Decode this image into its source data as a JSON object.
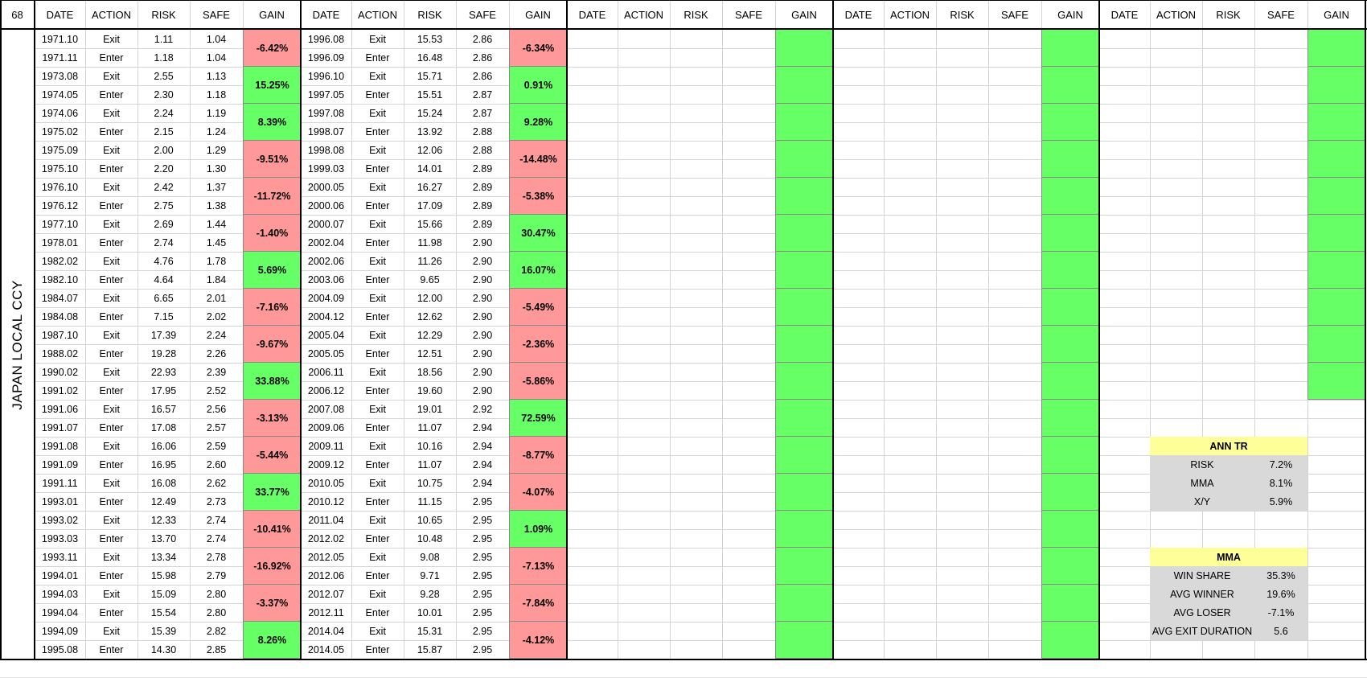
{
  "sheet_id": "68",
  "side_label": "JAPAN LOCAL CCY",
  "headers": [
    "DATE",
    "ACTION",
    "RISK",
    "SAFE",
    "GAIN"
  ],
  "colors": {
    "loss": "#ff9999",
    "win": "#66ff66",
    "stat_title": "#ffff99",
    "stat_body": "#d9d9d9"
  },
  "blocks": [
    {
      "rows": [
        {
          "date": "1971.10",
          "action": "Exit",
          "risk": "1.11",
          "safe": "1.04"
        },
        {
          "date": "1971.11",
          "action": "Enter",
          "risk": "1.18",
          "safe": "1.04"
        },
        {
          "date": "1973.08",
          "action": "Exit",
          "risk": "2.55",
          "safe": "1.13"
        },
        {
          "date": "1974.05",
          "action": "Enter",
          "risk": "2.30",
          "safe": "1.18"
        },
        {
          "date": "1974.06",
          "action": "Exit",
          "risk": "2.24",
          "safe": "1.19"
        },
        {
          "date": "1975.02",
          "action": "Enter",
          "risk": "2.15",
          "safe": "1.24"
        },
        {
          "date": "1975.09",
          "action": "Exit",
          "risk": "2.00",
          "safe": "1.29"
        },
        {
          "date": "1975.10",
          "action": "Enter",
          "risk": "2.20",
          "safe": "1.30"
        },
        {
          "date": "1976.10",
          "action": "Exit",
          "risk": "2.42",
          "safe": "1.37"
        },
        {
          "date": "1976.12",
          "action": "Enter",
          "risk": "2.75",
          "safe": "1.38"
        },
        {
          "date": "1977.10",
          "action": "Exit",
          "risk": "2.69",
          "safe": "1.44"
        },
        {
          "date": "1978.01",
          "action": "Enter",
          "risk": "2.74",
          "safe": "1.45"
        },
        {
          "date": "1982.02",
          "action": "Exit",
          "risk": "4.76",
          "safe": "1.78"
        },
        {
          "date": "1982.10",
          "action": "Enter",
          "risk": "4.64",
          "safe": "1.84"
        },
        {
          "date": "1984.07",
          "action": "Exit",
          "risk": "6.65",
          "safe": "2.01"
        },
        {
          "date": "1984.08",
          "action": "Enter",
          "risk": "7.15",
          "safe": "2.02"
        },
        {
          "date": "1987.10",
          "action": "Exit",
          "risk": "17.39",
          "safe": "2.24"
        },
        {
          "date": "1988.02",
          "action": "Enter",
          "risk": "19.28",
          "safe": "2.26"
        },
        {
          "date": "1990.02",
          "action": "Exit",
          "risk": "22.93",
          "safe": "2.39"
        },
        {
          "date": "1991.02",
          "action": "Enter",
          "risk": "17.95",
          "safe": "2.52"
        },
        {
          "date": "1991.06",
          "action": "Exit",
          "risk": "16.57",
          "safe": "2.56"
        },
        {
          "date": "1991.07",
          "action": "Enter",
          "risk": "17.08",
          "safe": "2.57"
        },
        {
          "date": "1991.08",
          "action": "Exit",
          "risk": "16.06",
          "safe": "2.59"
        },
        {
          "date": "1991.09",
          "action": "Enter",
          "risk": "16.95",
          "safe": "2.60"
        },
        {
          "date": "1991.11",
          "action": "Exit",
          "risk": "16.08",
          "safe": "2.62"
        },
        {
          "date": "1993.01",
          "action": "Enter",
          "risk": "12.49",
          "safe": "2.73"
        },
        {
          "date": "1993.02",
          "action": "Exit",
          "risk": "12.33",
          "safe": "2.74"
        },
        {
          "date": "1993.03",
          "action": "Enter",
          "risk": "13.70",
          "safe": "2.74"
        },
        {
          "date": "1993.11",
          "action": "Exit",
          "risk": "13.34",
          "safe": "2.78"
        },
        {
          "date": "1994.01",
          "action": "Enter",
          "risk": "15.98",
          "safe": "2.79"
        },
        {
          "date": "1994.03",
          "action": "Exit",
          "risk": "15.09",
          "safe": "2.80"
        },
        {
          "date": "1994.04",
          "action": "Enter",
          "risk": "15.54",
          "safe": "2.80"
        },
        {
          "date": "1994.09",
          "action": "Exit",
          "risk": "15.39",
          "safe": "2.82"
        },
        {
          "date": "1995.08",
          "action": "Enter",
          "risk": "14.30",
          "safe": "2.85"
        }
      ],
      "gains": [
        {
          "text": "-6.42%",
          "win": false
        },
        {
          "text": "15.25%",
          "win": true
        },
        {
          "text": "8.39%",
          "win": true
        },
        {
          "text": "-9.51%",
          "win": false
        },
        {
          "text": "-11.72%",
          "win": false
        },
        {
          "text": "-1.40%",
          "win": false
        },
        {
          "text": "5.69%",
          "win": true
        },
        {
          "text": "-7.16%",
          "win": false
        },
        {
          "text": "-9.67%",
          "win": false
        },
        {
          "text": "33.88%",
          "win": true
        },
        {
          "text": "-3.13%",
          "win": false
        },
        {
          "text": "-5.44%",
          "win": false
        },
        {
          "text": "33.77%",
          "win": true
        },
        {
          "text": "-10.41%",
          "win": false
        },
        {
          "text": "-16.92%",
          "win": false
        },
        {
          "text": "-3.37%",
          "win": false
        },
        {
          "text": "8.26%",
          "win": true
        }
      ]
    },
    {
      "rows": [
        {
          "date": "1996.08",
          "action": "Exit",
          "risk": "15.53",
          "safe": "2.86"
        },
        {
          "date": "1996.09",
          "action": "Enter",
          "risk": "16.48",
          "safe": "2.86"
        },
        {
          "date": "1996.10",
          "action": "Exit",
          "risk": "15.71",
          "safe": "2.86"
        },
        {
          "date": "1997.05",
          "action": "Enter",
          "risk": "15.51",
          "safe": "2.87"
        },
        {
          "date": "1997.08",
          "action": "Exit",
          "risk": "15.24",
          "safe": "2.87"
        },
        {
          "date": "1998.07",
          "action": "Enter",
          "risk": "13.92",
          "safe": "2.88"
        },
        {
          "date": "1998.08",
          "action": "Exit",
          "risk": "12.06",
          "safe": "2.88"
        },
        {
          "date": "1999.03",
          "action": "Enter",
          "risk": "14.01",
          "safe": "2.89"
        },
        {
          "date": "2000.05",
          "action": "Exit",
          "risk": "16.27",
          "safe": "2.89"
        },
        {
          "date": "2000.06",
          "action": "Enter",
          "risk": "17.09",
          "safe": "2.89"
        },
        {
          "date": "2000.07",
          "action": "Exit",
          "risk": "15.66",
          "safe": "2.89"
        },
        {
          "date": "2002.04",
          "action": "Enter",
          "risk": "11.98",
          "safe": "2.90"
        },
        {
          "date": "2002.06",
          "action": "Exit",
          "risk": "11.26",
          "safe": "2.90"
        },
        {
          "date": "2003.06",
          "action": "Enter",
          "risk": "9.65",
          "safe": "2.90"
        },
        {
          "date": "2004.09",
          "action": "Exit",
          "risk": "12.00",
          "safe": "2.90"
        },
        {
          "date": "2004.12",
          "action": "Enter",
          "risk": "12.62",
          "safe": "2.90"
        },
        {
          "date": "2005.04",
          "action": "Exit",
          "risk": "12.29",
          "safe": "2.90"
        },
        {
          "date": "2005.05",
          "action": "Enter",
          "risk": "12.51",
          "safe": "2.90"
        },
        {
          "date": "2006.11",
          "action": "Exit",
          "risk": "18.56",
          "safe": "2.90"
        },
        {
          "date": "2006.12",
          "action": "Enter",
          "risk": "19.60",
          "safe": "2.90"
        },
        {
          "date": "2007.08",
          "action": "Exit",
          "risk": "19.01",
          "safe": "2.92"
        },
        {
          "date": "2009.06",
          "action": "Enter",
          "risk": "11.07",
          "safe": "2.94"
        },
        {
          "date": "2009.11",
          "action": "Exit",
          "risk": "10.16",
          "safe": "2.94"
        },
        {
          "date": "2009.12",
          "action": "Enter",
          "risk": "11.07",
          "safe": "2.94"
        },
        {
          "date": "2010.05",
          "action": "Exit",
          "risk": "10.75",
          "safe": "2.94"
        },
        {
          "date": "2010.12",
          "action": "Enter",
          "risk": "11.15",
          "safe": "2.95"
        },
        {
          "date": "2011.04",
          "action": "Exit",
          "risk": "10.65",
          "safe": "2.95"
        },
        {
          "date": "2012.02",
          "action": "Enter",
          "risk": "10.48",
          "safe": "2.95"
        },
        {
          "date": "2012.05",
          "action": "Exit",
          "risk": "9.08",
          "safe": "2.95"
        },
        {
          "date": "2012.06",
          "action": "Enter",
          "risk": "9.71",
          "safe": "2.95"
        },
        {
          "date": "2012.07",
          "action": "Exit",
          "risk": "9.28",
          "safe": "2.95"
        },
        {
          "date": "2012.11",
          "action": "Enter",
          "risk": "10.01",
          "safe": "2.95"
        },
        {
          "date": "2014.04",
          "action": "Exit",
          "risk": "15.31",
          "safe": "2.95"
        },
        {
          "date": "2014.05",
          "action": "Enter",
          "risk": "15.87",
          "safe": "2.95"
        }
      ],
      "gains": [
        {
          "text": "-6.34%",
          "win": false
        },
        {
          "text": "0.91%",
          "win": true
        },
        {
          "text": "9.28%",
          "win": true
        },
        {
          "text": "-14.48%",
          "win": false
        },
        {
          "text": "-5.38%",
          "win": false
        },
        {
          "text": "30.47%",
          "win": true
        },
        {
          "text": "16.07%",
          "win": true
        },
        {
          "text": "-5.49%",
          "win": false
        },
        {
          "text": "-2.36%",
          "win": false
        },
        {
          "text": "-5.86%",
          "win": false
        },
        {
          "text": "72.59%",
          "win": true
        },
        {
          "text": "-8.77%",
          "win": false
        },
        {
          "text": "-4.07%",
          "win": false
        },
        {
          "text": "1.09%",
          "win": true
        },
        {
          "text": "-7.13%",
          "win": false
        },
        {
          "text": "-7.84%",
          "win": false
        },
        {
          "text": "-4.12%",
          "win": false
        }
      ]
    },
    {
      "rows": [],
      "gains": [],
      "green_rows": 17
    },
    {
      "rows": [],
      "gains": [],
      "green_rows": 17
    },
    {
      "rows": [],
      "gains": [],
      "green_rows": 10
    }
  ],
  "stats": {
    "ann_tr": {
      "title": "ANN TR",
      "rows": [
        {
          "label": "RISK",
          "value": "7.2%"
        },
        {
          "label": "MMA",
          "value": "8.1%"
        },
        {
          "label": "X/Y",
          "value": "5.9%"
        }
      ]
    },
    "mma": {
      "title": "MMA",
      "rows": [
        {
          "label": "WIN SHARE",
          "value": "35.3%"
        },
        {
          "label": "AVG WINNER",
          "value": "19.6%"
        },
        {
          "label": "AVG LOSER",
          "value": "-7.1%"
        },
        {
          "label": "AVG EXIT DURATION",
          "value": "5.6"
        }
      ]
    }
  }
}
